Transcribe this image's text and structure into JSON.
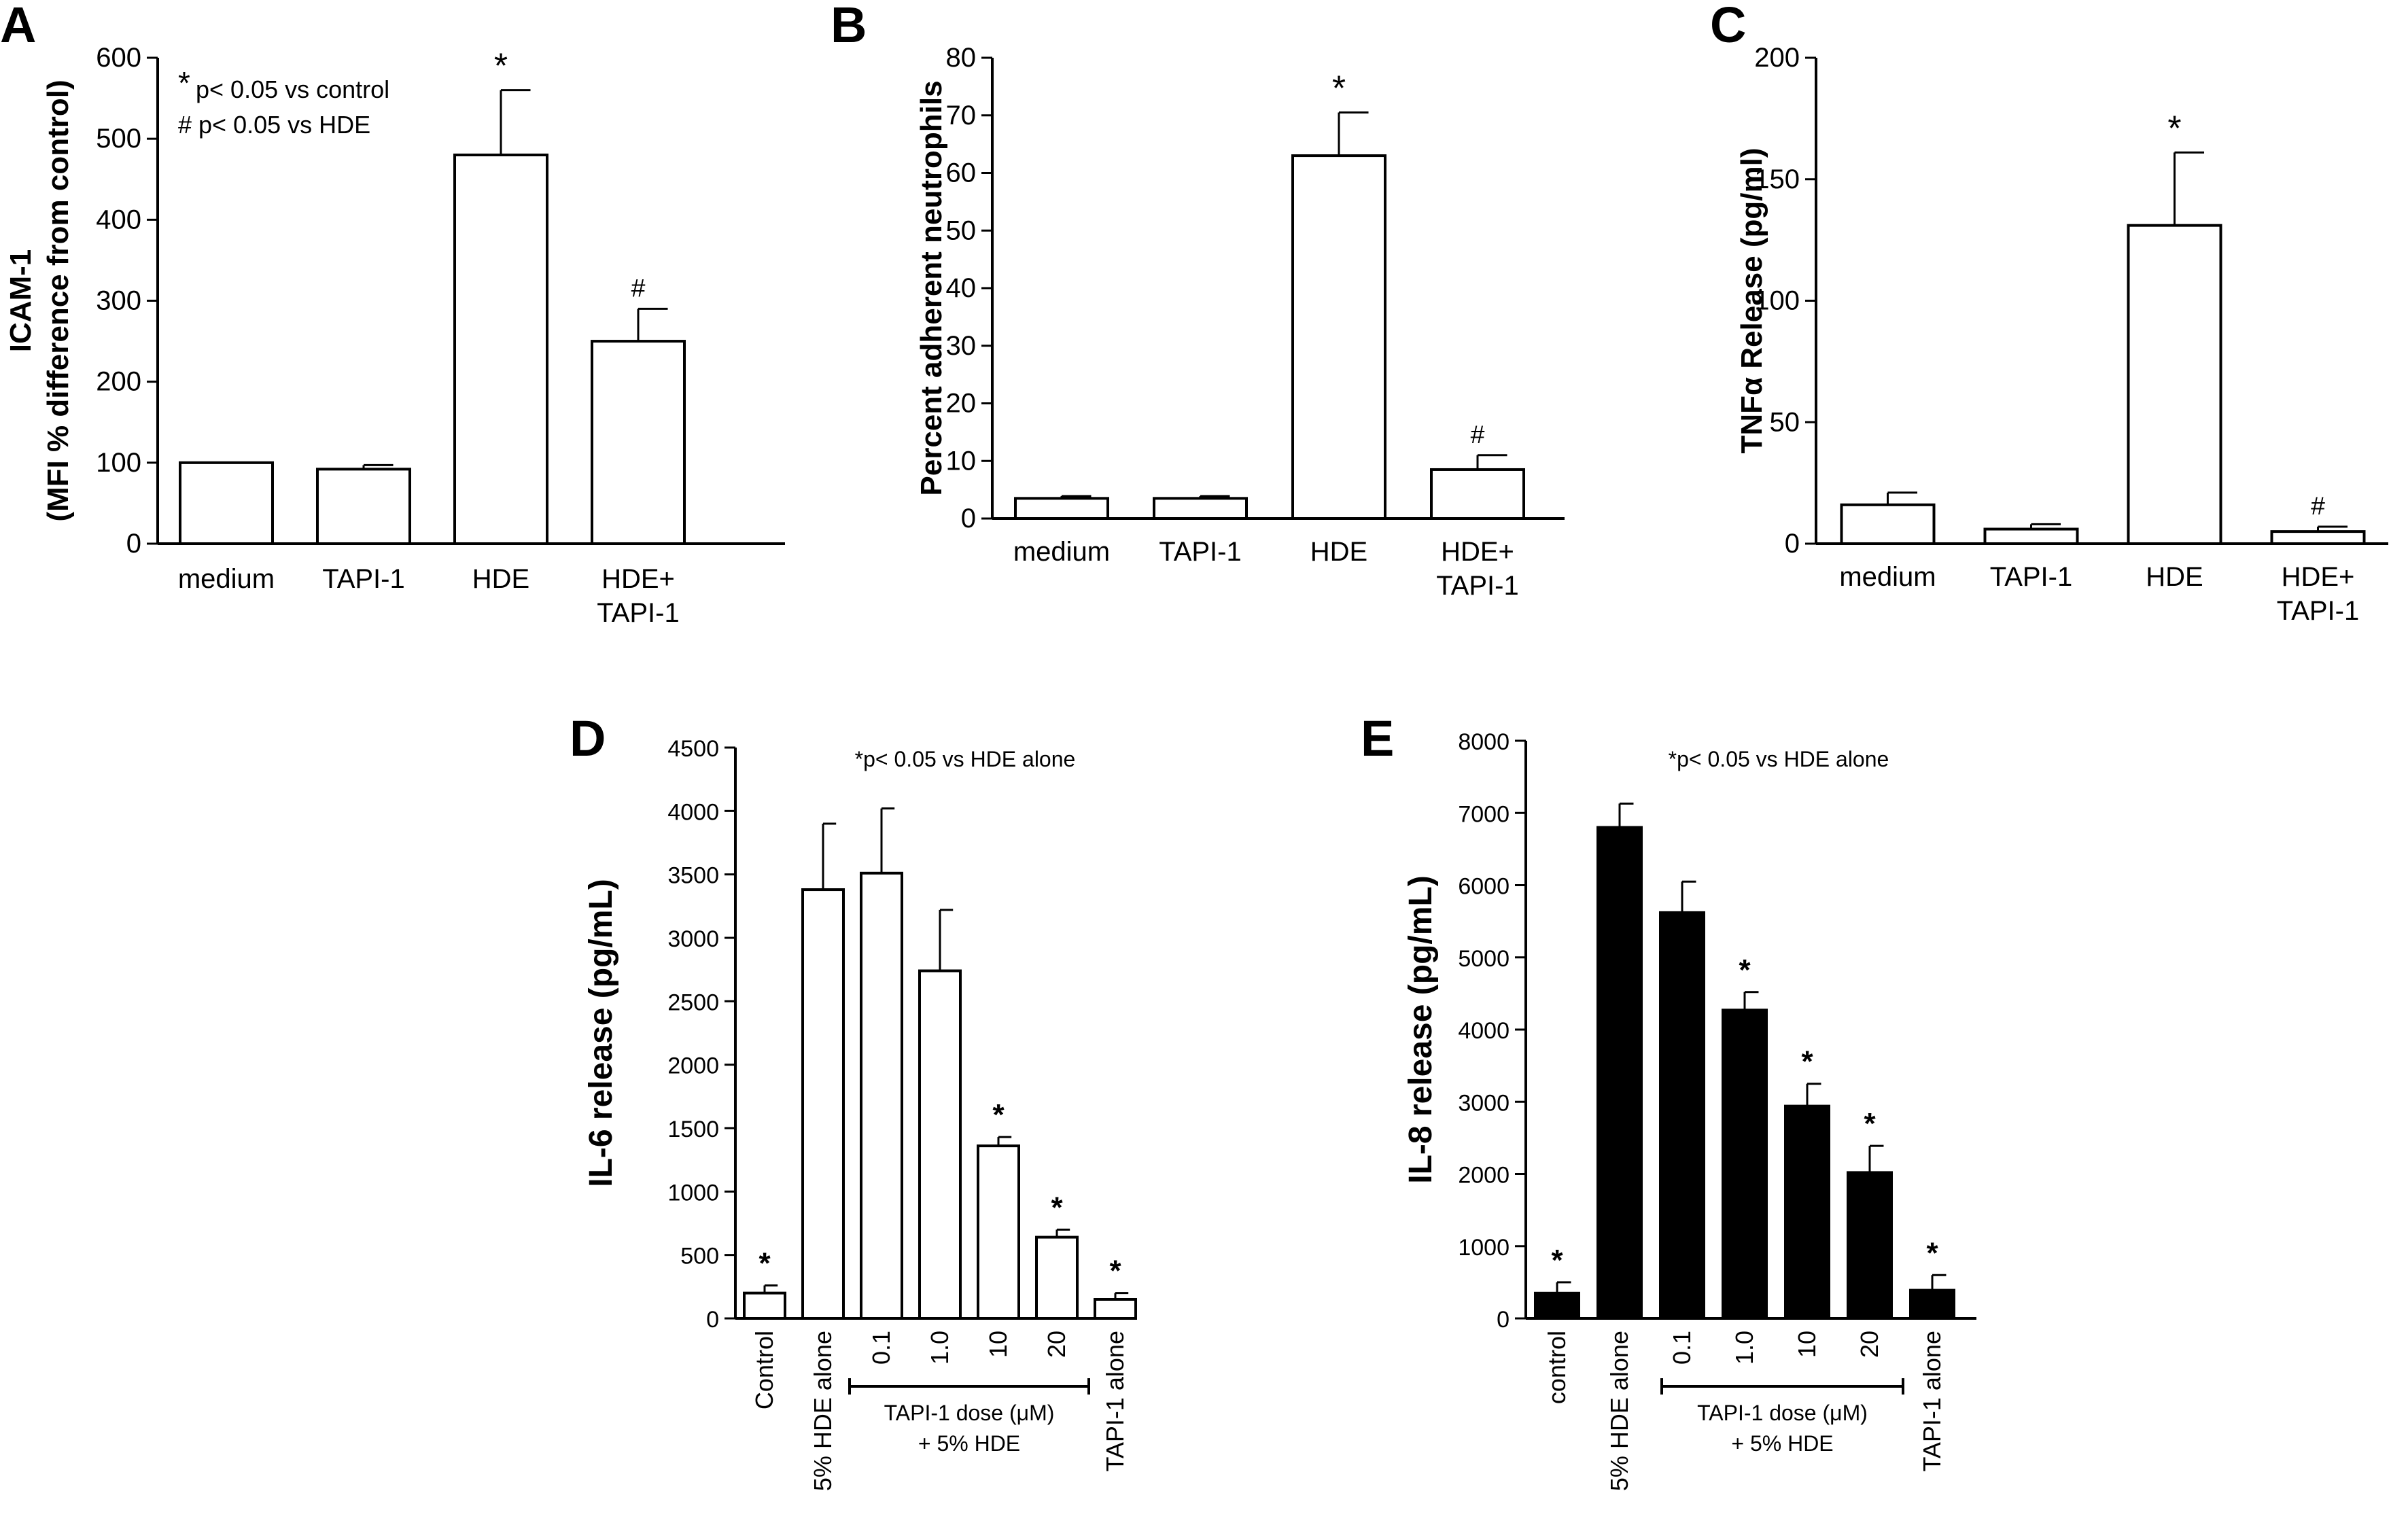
{
  "chart_data": [
    {
      "panel_label": "A",
      "type": "bar",
      "bar_color": "#ffffff",
      "categories": [
        [
          "medium"
        ],
        [
          "TAPI-1"
        ],
        [
          "HDE"
        ],
        [
          "HDE+",
          "TAPI-1"
        ]
      ],
      "values": [
        100,
        92,
        480,
        250
      ],
      "errors": [
        0,
        5,
        80,
        40
      ],
      "marks": [
        "",
        "",
        "*",
        "#"
      ],
      "ylabel": [
        "ICAM-1",
        "(MFI % difference from control)"
      ],
      "ylim": [
        0,
        600
      ],
      "yticks": [
        0,
        100,
        200,
        300,
        400,
        500,
        600
      ],
      "legend": [
        "p< 0.05 vs control",
        "# p< 0.05 vs HDE"
      ]
    },
    {
      "panel_label": "B",
      "type": "bar",
      "bar_color": "#ffffff",
      "categories": [
        [
          "medium"
        ],
        [
          "TAPI-1"
        ],
        [
          "HDE"
        ],
        [
          "HDE+",
          "TAPI-1"
        ]
      ],
      "values": [
        3.5,
        3.5,
        63,
        8.5
      ],
      "errors": [
        0.4,
        0.4,
        7.5,
        2.5
      ],
      "marks": [
        "",
        "",
        "*",
        "#"
      ],
      "ylabel": [
        "Percent adherent neutrophils"
      ],
      "ylim": [
        0,
        80
      ],
      "yticks": [
        0,
        10,
        20,
        30,
        40,
        50,
        60,
        70,
        80
      ]
    },
    {
      "panel_label": "C",
      "type": "bar",
      "bar_color": "#ffffff",
      "categories": [
        [
          "medium"
        ],
        [
          "TAPI-1"
        ],
        [
          "HDE"
        ],
        [
          "HDE+",
          "TAPI-1"
        ]
      ],
      "values": [
        16,
        6,
        131,
        5
      ],
      "errors": [
        5,
        2,
        30,
        2
      ],
      "marks": [
        "",
        "",
        "*",
        "#"
      ],
      "ylabel": [
        "TNFα Release (pg/ml)"
      ],
      "ylim": [
        0,
        200
      ],
      "yticks": [
        0,
        50,
        100,
        150,
        200
      ]
    },
    {
      "panel_label": "D",
      "type": "bar",
      "bar_color": "#ffffff",
      "categories": [
        "Control",
        "5% HDE alone",
        "0.1",
        "1.0",
        "10",
        "20",
        "TAPI-1 alone"
      ],
      "values": [
        200,
        3380,
        3510,
        2740,
        1360,
        640,
        150
      ],
      "errors": [
        60,
        520,
        510,
        480,
        70,
        60,
        50
      ],
      "marks": [
        "*",
        "",
        "",
        "",
        "*",
        "*",
        "*"
      ],
      "ylabel": [
        "IL-6 release (pg/mL)"
      ],
      "ylim": [
        0,
        4500
      ],
      "yticks": [
        0,
        500,
        1000,
        1500,
        2000,
        2500,
        3000,
        3500,
        4000,
        4500
      ],
      "annotation": "*p< 0.05 vs HDE alone",
      "dose_group": [
        "TAPI-1 dose (μM)",
        "+ 5% HDE"
      ]
    },
    {
      "panel_label": "E",
      "type": "bar",
      "bar_color": "#000000",
      "categories": [
        "control",
        "5% HDE alone",
        "0.1",
        "1.0",
        "10",
        "20",
        "TAPI-1 alone"
      ],
      "values": [
        350,
        6800,
        5620,
        4270,
        2940,
        2020,
        390
      ],
      "errors": [
        150,
        330,
        430,
        250,
        310,
        370,
        210
      ],
      "marks": [
        "*",
        "",
        "",
        "*",
        "*",
        "*",
        "*"
      ],
      "ylabel": [
        "IL-8 release (pg/mL)"
      ],
      "ylim": [
        0,
        8000
      ],
      "yticks": [
        0,
        1000,
        2000,
        3000,
        4000,
        5000,
        6000,
        7000,
        8000
      ],
      "annotation": "*p< 0.05 vs HDE alone",
      "dose_group": [
        "TAPI-1 dose (μM)",
        "+ 5% HDE"
      ]
    }
  ]
}
